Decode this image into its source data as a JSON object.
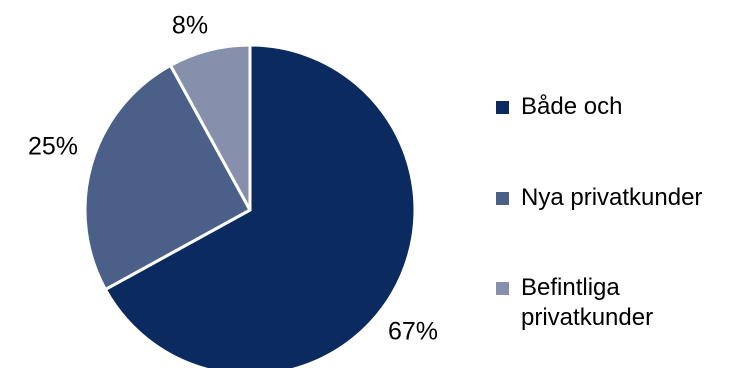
{
  "chart_data": {
    "type": "pie",
    "slices": [
      {
        "label": "Både och",
        "value": 67,
        "value_label": "67%",
        "color": "#0b2a60"
      },
      {
        "label": "Nya privatkunder",
        "value": 25,
        "value_label": "25%",
        "color": "#4a6089"
      },
      {
        "label": "Befintliga privatkunder",
        "value": 8,
        "value_label": "8%",
        "color": "#8690ad"
      }
    ],
    "legend_position": "right",
    "start": "top, clockwise"
  }
}
